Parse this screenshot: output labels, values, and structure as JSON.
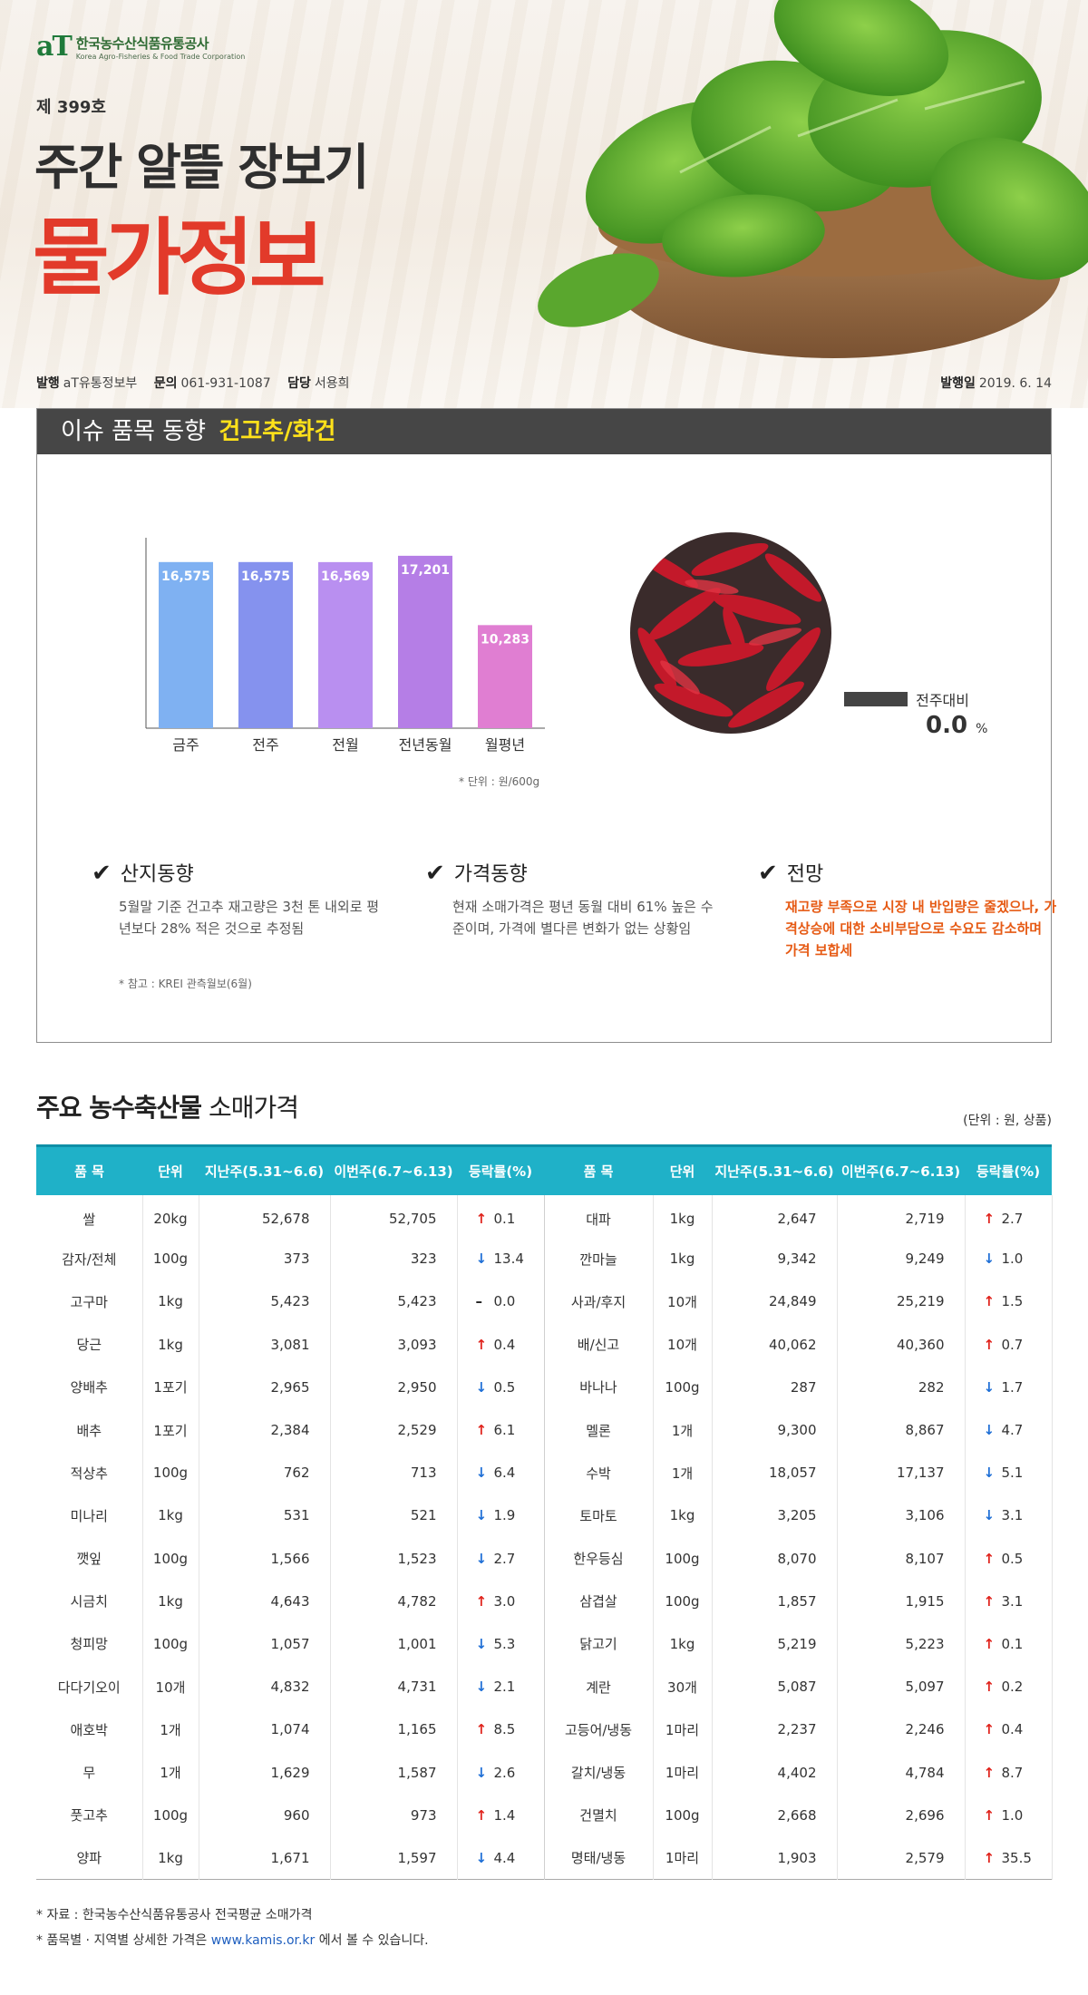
{
  "header": {
    "logo_mark": "aT",
    "logo_ko": "한국농수산식품유통공사",
    "logo_en": "Korea Agro-Fisheries & Food Trade Corporation",
    "issue_no": "제 399호",
    "title_line1": "주간 알뜰 장보기",
    "title_line2": "물가정보"
  },
  "meta": {
    "publisher_label": "발행",
    "publisher": "aT유통정보부",
    "contact_label": "문의",
    "contact": "061-931-1087",
    "manager_label": "담당",
    "manager": "서용희",
    "date_label": "발행일",
    "date": "2019. 6. 14"
  },
  "issue": {
    "heading": "이슈 품목 동향",
    "item": "건고추/화건",
    "unit_note": "* 단위 : 원/600g",
    "compare_label": "전주대비",
    "compare_value": "0.0",
    "compare_unit": "%",
    "col1_title": "산지동향",
    "col1_text": "5월말 기준 건고추 재고량은 3천 톤 내외로 평년보다 28% 적은 것으로 추정됨",
    "col2_title": "가격동향",
    "col2_text": "현재 소매가격은 평년 동월 대비 61% 높은 수준이며, 가격에 별다른 변화가 없는 상황임",
    "col3_title": "전망",
    "col3_text": "재고량 부족으로 시장 내 반입량은 줄겠으나, 가격상승에 대한 소비부담으로 수요도 감소하며 가격 보합세",
    "reference": "* 참고 : KREI 관측월보(6월)"
  },
  "chart_data": {
    "type": "bar",
    "categories": [
      "금주",
      "전주",
      "전월",
      "전년동월",
      "월평년"
    ],
    "values": [
      16575,
      16575,
      16569,
      17201,
      10283
    ],
    "value_labels": [
      "16,575",
      "16,575",
      "16,569",
      "17,201",
      "10,283"
    ],
    "colors": [
      "#7fb1f2",
      "#8592ee",
      "#b98ff0",
      "#b57ee6",
      "#e07ed2"
    ],
    "ylim": [
      0,
      19000
    ],
    "title": "",
    "xlabel": "",
    "ylabel": ""
  },
  "table": {
    "section_title_bold": "주요 농수축산물",
    "section_title_rest": "소매가격",
    "unit": "(단위 : 원, 상품)",
    "headers": [
      "품 목",
      "단위",
      "지난주(5.31~6.6)",
      "이번주(6.7~6.13)",
      "등락률(%)",
      "품 목",
      "단위",
      "지난주(5.31~6.6)",
      "이번주(6.7~6.13)",
      "등락률(%)"
    ],
    "left": [
      {
        "name": "쌀",
        "unit": "20kg",
        "prev": "52,678",
        "curr": "52,705",
        "dir": "up",
        "rate": "0.1"
      },
      {
        "name": "감자/전체",
        "unit": "100g",
        "prev": "373",
        "curr": "323",
        "dir": "down",
        "rate": "13.4"
      },
      {
        "name": "고구마",
        "unit": "1kg",
        "prev": "5,423",
        "curr": "5,423",
        "dir": "flat",
        "rate": "0.0"
      },
      {
        "name": "당근",
        "unit": "1kg",
        "prev": "3,081",
        "curr": "3,093",
        "dir": "up",
        "rate": "0.4"
      },
      {
        "name": "양배추",
        "unit": "1포기",
        "prev": "2,965",
        "curr": "2,950",
        "dir": "down",
        "rate": "0.5"
      },
      {
        "name": "배추",
        "unit": "1포기",
        "prev": "2,384",
        "curr": "2,529",
        "dir": "up",
        "rate": "6.1"
      },
      {
        "name": "적상추",
        "unit": "100g",
        "prev": "762",
        "curr": "713",
        "dir": "down",
        "rate": "6.4"
      },
      {
        "name": "미나리",
        "unit": "1kg",
        "prev": "531",
        "curr": "521",
        "dir": "down",
        "rate": "1.9"
      },
      {
        "name": "깻잎",
        "unit": "100g",
        "prev": "1,566",
        "curr": "1,523",
        "dir": "down",
        "rate": "2.7"
      },
      {
        "name": "시금치",
        "unit": "1kg",
        "prev": "4,643",
        "curr": "4,782",
        "dir": "up",
        "rate": "3.0"
      },
      {
        "name": "청피망",
        "unit": "100g",
        "prev": "1,057",
        "curr": "1,001",
        "dir": "down",
        "rate": "5.3"
      },
      {
        "name": "다다기오이",
        "unit": "10개",
        "prev": "4,832",
        "curr": "4,731",
        "dir": "down",
        "rate": "2.1"
      },
      {
        "name": "애호박",
        "unit": "1개",
        "prev": "1,074",
        "curr": "1,165",
        "dir": "up",
        "rate": "8.5"
      },
      {
        "name": "무",
        "unit": "1개",
        "prev": "1,629",
        "curr": "1,587",
        "dir": "down",
        "rate": "2.6"
      },
      {
        "name": "풋고추",
        "unit": "100g",
        "prev": "960",
        "curr": "973",
        "dir": "up",
        "rate": "1.4"
      },
      {
        "name": "양파",
        "unit": "1kg",
        "prev": "1,671",
        "curr": "1,597",
        "dir": "down",
        "rate": "4.4"
      }
    ],
    "right": [
      {
        "name": "대파",
        "unit": "1kg",
        "prev": "2,647",
        "curr": "2,719",
        "dir": "up",
        "rate": "2.7"
      },
      {
        "name": "깐마늘",
        "unit": "1kg",
        "prev": "9,342",
        "curr": "9,249",
        "dir": "down",
        "rate": "1.0"
      },
      {
        "name": "사과/후지",
        "unit": "10개",
        "prev": "24,849",
        "curr": "25,219",
        "dir": "up",
        "rate": "1.5"
      },
      {
        "name": "배/신고",
        "unit": "10개",
        "prev": "40,062",
        "curr": "40,360",
        "dir": "up",
        "rate": "0.7"
      },
      {
        "name": "바나나",
        "unit": "100g",
        "prev": "287",
        "curr": "282",
        "dir": "down",
        "rate": "1.7"
      },
      {
        "name": "멜론",
        "unit": "1개",
        "prev": "9,300",
        "curr": "8,867",
        "dir": "down",
        "rate": "4.7"
      },
      {
        "name": "수박",
        "unit": "1개",
        "prev": "18,057",
        "curr": "17,137",
        "dir": "down",
        "rate": "5.1"
      },
      {
        "name": "토마토",
        "unit": "1kg",
        "prev": "3,205",
        "curr": "3,106",
        "dir": "down",
        "rate": "3.1"
      },
      {
        "name": "한우등심",
        "unit": "100g",
        "prev": "8,070",
        "curr": "8,107",
        "dir": "up",
        "rate": "0.5"
      },
      {
        "name": "삼겹살",
        "unit": "100g",
        "prev": "1,857",
        "curr": "1,915",
        "dir": "up",
        "rate": "3.1"
      },
      {
        "name": "닭고기",
        "unit": "1kg",
        "prev": "5,219",
        "curr": "5,223",
        "dir": "up",
        "rate": "0.1"
      },
      {
        "name": "계란",
        "unit": "30개",
        "prev": "5,087",
        "curr": "5,097",
        "dir": "up",
        "rate": "0.2"
      },
      {
        "name": "고등어/냉동",
        "unit": "1마리",
        "prev": "2,237",
        "curr": "2,246",
        "dir": "up",
        "rate": "0.4"
      },
      {
        "name": "갈치/냉동",
        "unit": "1마리",
        "prev": "4,402",
        "curr": "4,784",
        "dir": "up",
        "rate": "8.7"
      },
      {
        "name": "건멸치",
        "unit": "100g",
        "prev": "2,668",
        "curr": "2,696",
        "dir": "up",
        "rate": "1.0"
      },
      {
        "name": "명태/냉동",
        "unit": "1마리",
        "prev": "1,903",
        "curr": "2,579",
        "dir": "up",
        "rate": "35.5"
      }
    ]
  },
  "footer": {
    "line1": "* 자료 : 한국농수산식품유통공사 전국평균 소매가격",
    "line2_pre": "* 품목별 · 지역별 상세한 가격은 ",
    "line2_link": "www.kamis.or.kr",
    "line2_post": " 에서 볼 수 있습니다."
  }
}
